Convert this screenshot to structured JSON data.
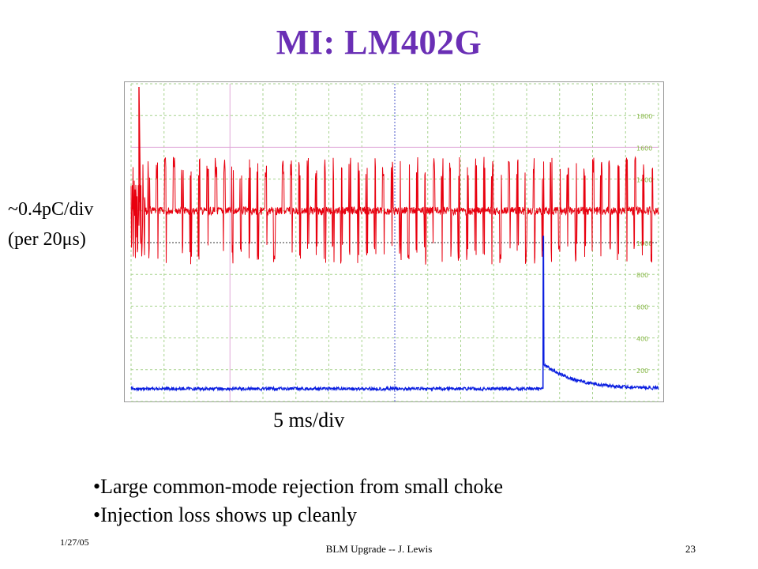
{
  "slide": {
    "title": "MI: LM402G",
    "bullets": [
      "Large common-mode rejection from small choke",
      "Injection loss shows up cleanly"
    ],
    "footer": {
      "date": "1/27/05",
      "center": "BLM Upgrade -- J. Lewis",
      "page": "23"
    }
  },
  "colors": {
    "title": "#6a2fb5",
    "red_trace": "#e8000f",
    "blue_trace": "#0a1ee0",
    "grid_green": "#a6d28c",
    "grid_pink": "#e0a8d8",
    "grid_blue": "#4a55c8",
    "scale_text": "#8ab84a"
  },
  "chart_data": {
    "type": "line",
    "title": "",
    "ylabel_lines": [
      "~0.4pC/div",
      "(per 20μs)"
    ],
    "xlabel": "5 ms/div",
    "x_divisions": 16,
    "y_divisions": 10,
    "right_scale_ticks": [
      "1800",
      "1600",
      "1400",
      "1000",
      "800",
      "600",
      "400",
      "200"
    ],
    "series": [
      {
        "color": "#e8000f",
        "trace": "periodic noise bursts",
        "baseline_div_from_top": 4,
        "burst_amplitude_div": 1.7,
        "burst_count": 62,
        "initial_spike_div_from_top": 0.1
      },
      {
        "color": "#0a1ee0",
        "trace": "flat baseline with injection loss step",
        "baseline_div_from_top": 9.6,
        "step_at_div": 12.5,
        "step_peak_div_from_top": 4.8,
        "decay_to_div_from_top": 9.3
      }
    ]
  }
}
